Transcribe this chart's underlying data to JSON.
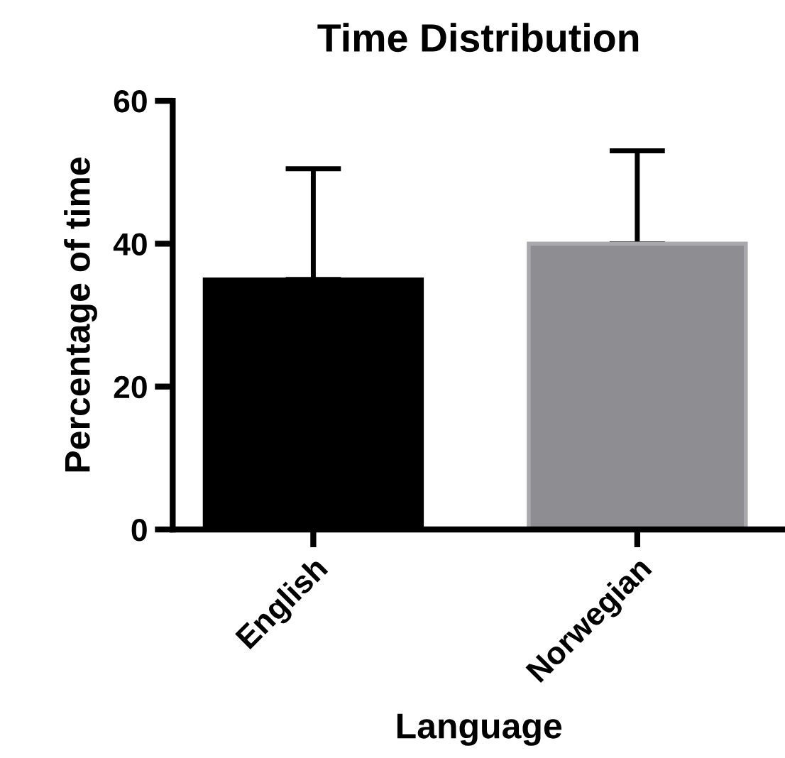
{
  "chart_data": {
    "type": "bar",
    "title": "Time Distribution",
    "xlabel": "Language",
    "ylabel": "Percentage of time",
    "categories": [
      "English",
      "Norwegian"
    ],
    "values": [
      35,
      40
    ],
    "colors": [
      "#000000",
      "#8e8e92"
    ],
    "errors": [
      [
        35,
        50.5
      ],
      [
        40,
        53
      ]
    ],
    "ylim": [
      0,
      60
    ],
    "yticks": [
      0,
      20,
      40,
      60
    ],
    "grid": false,
    "legend": false
  }
}
